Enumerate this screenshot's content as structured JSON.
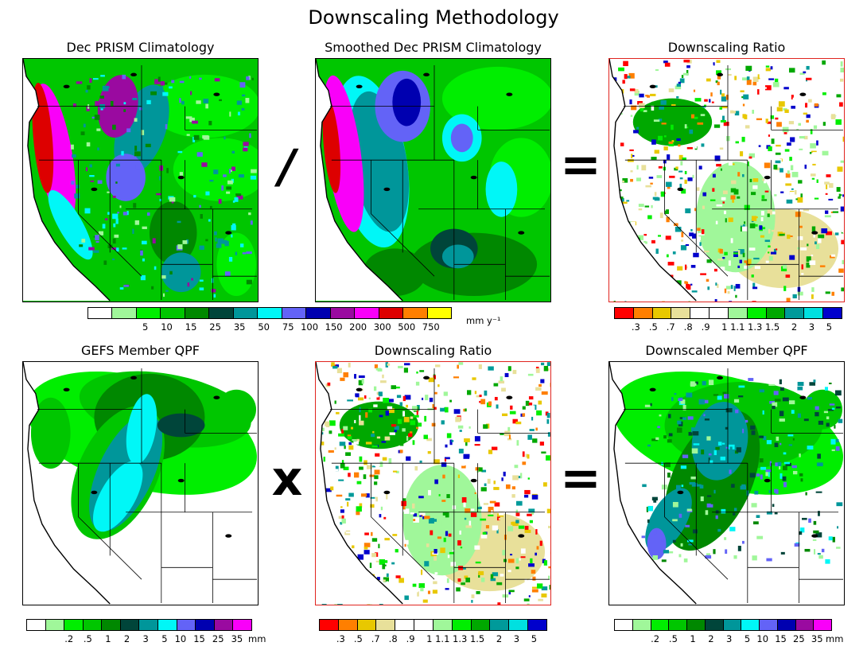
{
  "main_title": "Downscaling Methodology",
  "panels": {
    "prism": {
      "title": "Dec PRISM Climatology"
    },
    "smoothed": {
      "title": "Smoothed Dec PRISM Climatology"
    },
    "ratio_top": {
      "title": "Downscaling Ratio"
    },
    "gefs": {
      "title": "GEFS Member QPF"
    },
    "ratio_bottom": {
      "title": "Downscaling Ratio"
    },
    "downscaled": {
      "title": "Downscaled Member QPF"
    }
  },
  "operators": {
    "divide": "/",
    "equals_top": "=",
    "multiply": "x",
    "equals_bottom": "="
  },
  "colorbars": {
    "climo": {
      "colors": [
        "#ffffff",
        "#a0f79a",
        "#00ee00",
        "#00c600",
        "#008800",
        "#00453a",
        "#00969a",
        "#00f7f7",
        "#6363f7",
        "#0000b0",
        "#9a0aa0",
        "#f900f9",
        "#dd0000",
        "#ff7f00",
        "#ffff00"
      ],
      "ticks": [
        "5",
        "10",
        "15",
        "25",
        "35",
        "50",
        "75",
        "100",
        "150",
        "200",
        "300",
        "500",
        "750"
      ],
      "unit": "mm y⁻¹"
    },
    "ratio": {
      "colors": [
        "#ff0000",
        "#ff7f00",
        "#e8c800",
        "#e8e09a",
        "#ffffff",
        "#ffffff",
        "#a0f79a",
        "#00ee00",
        "#00a800",
        "#009a9a",
        "#00e0e0",
        "#0000cc"
      ],
      "ticks": [
        ".3",
        ".5",
        ".7",
        ".8",
        ".9",
        "1",
        "1.1",
        "1.3",
        "1.5",
        "2",
        "3",
        "5"
      ]
    },
    "qpf": {
      "colors": [
        "#ffffff",
        "#a0f79a",
        "#00ee00",
        "#00c600",
        "#008800",
        "#00453a",
        "#00969a",
        "#00f7f7",
        "#6363f7",
        "#0000b0",
        "#9a0aa0",
        "#f900f9"
      ],
      "ticks": [
        ".2",
        ".5",
        "1",
        "2",
        "3",
        "5",
        "10",
        "15",
        "25",
        "35"
      ],
      "unit": "mm"
    }
  }
}
